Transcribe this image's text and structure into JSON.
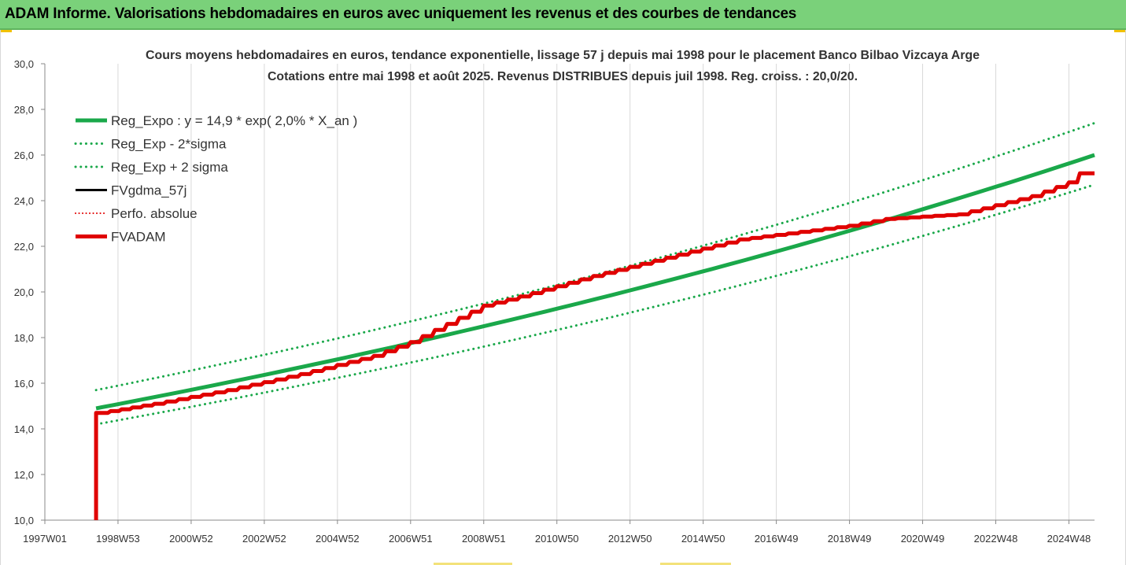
{
  "banner": {
    "title": "ADAM Informe. Valorisations hebdomadaires en euros avec uniquement les revenus et des courbes de tendances"
  },
  "colors": {
    "banner_bg": "#7ad17a",
    "reg_green": "#1aa84a",
    "adam_red": "#e00000",
    "black": "#000000",
    "grid": "#d9d9d9"
  },
  "chart_data": {
    "type": "line",
    "title_lines": [
      "Cours moyens hebdomadaires en euros, tendance exponentielle, lissage 57 j depuis mai 1998 pour le placement Banco Bilbao Vizcaya Arge",
      "Cotations entre mai 1998 et août 2025.  Revenus DISTRIBUES depuis juil 1998. Reg. croiss. : 20,0/20."
    ],
    "ylim": [
      10,
      30
    ],
    "y_ticks": [
      "10,0",
      "12,0",
      "14,0",
      "16,0",
      "18,0",
      "20,0",
      "22,0",
      "24,0",
      "26,0",
      "28,0",
      "30,0"
    ],
    "x_range_years": [
      1997.0,
      2025.7
    ],
    "x_ticks": [
      {
        "label": "1997W01",
        "year": 1997.0
      },
      {
        "label": "1998W53",
        "year": 1999.0
      },
      {
        "label": "2000W52",
        "year": 2001.0
      },
      {
        "label": "2002W52",
        "year": 2003.0
      },
      {
        "label": "2004W52",
        "year": 2005.0
      },
      {
        "label": "2006W51",
        "year": 2007.0
      },
      {
        "label": "2008W51",
        "year": 2009.0
      },
      {
        "label": "2010W50",
        "year": 2011.0
      },
      {
        "label": "2012W50",
        "year": 2013.0
      },
      {
        "label": "2014W50",
        "year": 2015.0
      },
      {
        "label": "2016W49",
        "year": 2017.0
      },
      {
        "label": "2018W49",
        "year": 2019.0
      },
      {
        "label": "2020W49",
        "year": 2021.0
      },
      {
        "label": "2022W48",
        "year": 2023.0
      },
      {
        "label": "2024W48",
        "year": 2025.0
      }
    ],
    "legend": [
      {
        "name": "Reg_Expo : y = 14,9 * exp( 2,0% *  X_an )",
        "color": "#1aa84a",
        "style": "solid",
        "width": 5
      },
      {
        "name": "Reg_Exp - 2*sigma",
        "color": "#1aa84a",
        "style": "dotted",
        "width": 3
      },
      {
        "name": "Reg_Exp + 2 sigma",
        "color": "#1aa84a",
        "style": "dotted",
        "width": 3
      },
      {
        "name": "FVgdma_57j",
        "color": "#000000",
        "style": "solid",
        "width": 3
      },
      {
        "name": "Perfo. absolue",
        "color": "#e00000",
        "style": "dotted",
        "width": 2
      },
      {
        "name": "FVADAM",
        "color": "#e00000",
        "style": "solid",
        "width": 5
      }
    ],
    "legend_position": "top-left",
    "grid": "vertical",
    "series": [
      {
        "name": "Reg_Expo : y = 14,9 * exp( 2,0% *  X_an )",
        "x": [
          1998.4,
          2025.7
        ],
        "y": [
          14.9,
          26.0
        ]
      },
      {
        "name": "Reg_Exp - 2*sigma",
        "x": [
          1998.4,
          2025.7
        ],
        "y": [
          14.2,
          24.7
        ]
      },
      {
        "name": "Reg_Exp + 2 sigma",
        "x": [
          1998.4,
          2025.7
        ],
        "y": [
          15.7,
          27.4
        ]
      },
      {
        "name": "FVADAM",
        "x": [
          1998.4,
          1998.4,
          1998.5,
          2000,
          2002,
          2004,
          2006,
          2007,
          2008,
          2009,
          2010,
          2012,
          2014,
          2016,
          2018,
          2019,
          2020,
          2022,
          2023,
          2024,
          2025,
          2025.3,
          2025.7
        ],
        "y": [
          10.0,
          14.7,
          14.7,
          15.1,
          15.7,
          16.4,
          17.2,
          17.8,
          18.6,
          19.4,
          19.8,
          20.7,
          21.5,
          22.3,
          22.7,
          22.9,
          23.2,
          23.4,
          23.8,
          24.2,
          24.8,
          25.2,
          25.2
        ]
      }
    ]
  }
}
